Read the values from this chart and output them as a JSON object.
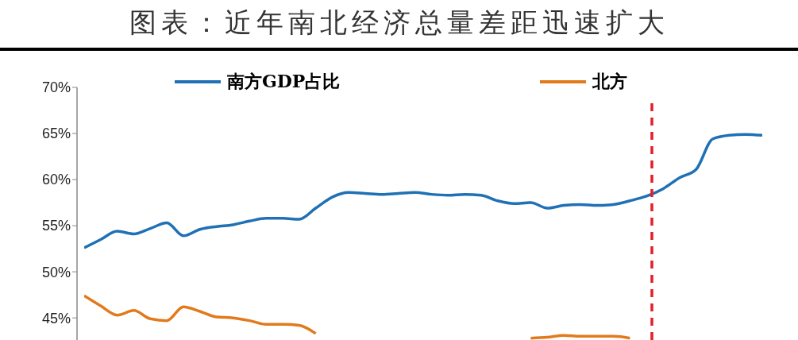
{
  "chart_data": {
    "type": "line",
    "title": "图表：近年南北经济总量差距迅速扩大",
    "categories": [
      null,
      null,
      null,
      null,
      null,
      null,
      null,
      null,
      null,
      null,
      null,
      null,
      null,
      null,
      null,
      null,
      null,
      null,
      null,
      null,
      null,
      null,
      null,
      null,
      null,
      null,
      null,
      null,
      null,
      null,
      null,
      null,
      null,
      null,
      null,
      null,
      null,
      null,
      null,
      null,
      null,
      null
    ],
    "series": [
      {
        "name": "南方GDP占比",
        "color": "#1f70b5",
        "values": [
          52.6,
          53.5,
          54.4,
          54.1,
          54.7,
          55.3,
          53.9,
          54.6,
          54.9,
          55.1,
          55.5,
          55.8,
          55.8,
          55.7,
          56.9,
          58.1,
          58.6,
          58.5,
          58.4,
          58.5,
          58.6,
          58.4,
          58.3,
          58.4,
          58.3,
          57.7,
          57.4,
          57.5,
          56.9,
          57.2,
          57.3,
          57.2,
          57.3,
          57.7,
          58.2,
          59.0,
          60.2,
          61.1,
          64.4,
          64.8,
          64.9,
          64.8
        ]
      },
      {
        "name": "北方",
        "color": "#e27a1c",
        "values": [
          47.4,
          46.3,
          45.3,
          45.8,
          44.9,
          44.7,
          46.2,
          45.7,
          45.1,
          45.0,
          44.7,
          44.3,
          44.3,
          44.2,
          43.3,
          null,
          null,
          null,
          null,
          null,
          null,
          null,
          null,
          null,
          null,
          null,
          null,
          42.8,
          42.9,
          43.1,
          43.0,
          43.0,
          43.0,
          42.8,
          null,
          null,
          null,
          null,
          null,
          null,
          null,
          null
        ]
      }
    ],
    "ylim": [
      42.6,
      70
    ],
    "yticks": [
      {
        "value": 45,
        "label": "45%"
      },
      {
        "value": 50,
        "label": "50%"
      },
      {
        "value": 55,
        "label": "55%"
      },
      {
        "value": 60,
        "label": "60%"
      },
      {
        "value": 65,
        "label": "65%"
      },
      {
        "value": 70,
        "label": "70%"
      }
    ],
    "tick_labels": "y",
    "legend": "top",
    "grid": false,
    "line_style": "solid",
    "marker": "none"
  }
}
